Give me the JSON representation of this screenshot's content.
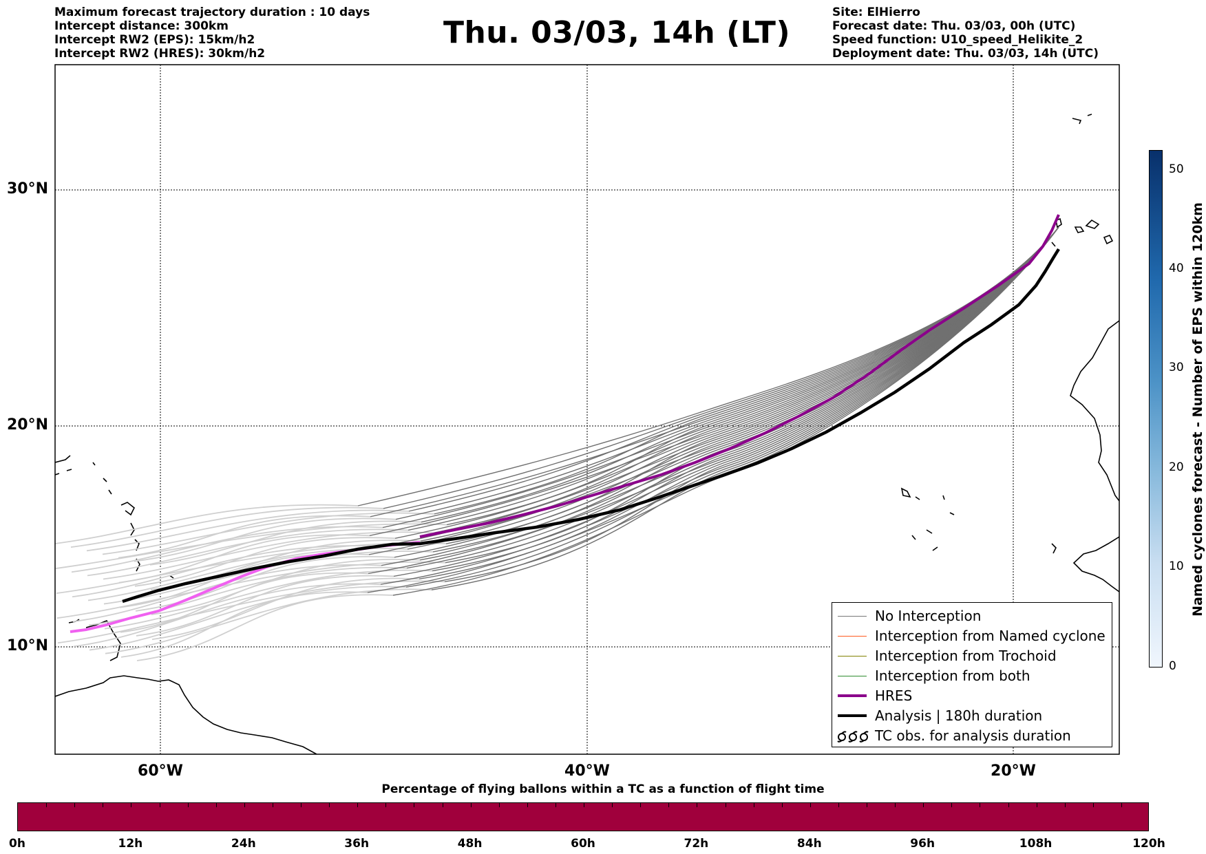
{
  "header": {
    "left_lines": [
      "Maximum forecast trajectory duration : 10 days",
      "Intercept distance: 300km",
      "Intercept RW2 (EPS):  15km/h2",
      "Intercept RW2 (HRES): 30km/h2"
    ],
    "title": "Thu. 03/03, 14h (LT)",
    "right_lines": [
      "Site: ElHierro",
      "Forecast date: Thu. 03/03, 00h (UTC)",
      "Speed function: U10_speed_Helikite_2",
      "Deployment date: Thu. 03/03, 14h (UTC)"
    ]
  },
  "map": {
    "lat_labels": [
      "30°N",
      "20°N",
      "10°N"
    ],
    "lon_labels": [
      "60°W",
      "40°W",
      "20°W"
    ]
  },
  "legend": {
    "items": [
      {
        "label": "No Interception",
        "color": "#777777"
      },
      {
        "label": "Interception from Named cyclone",
        "color": "#ff5a1f"
      },
      {
        "label": "Interception from Trochoid",
        "color": "#808000"
      },
      {
        "label": "Interception from both",
        "color": "#2e8b2e"
      },
      {
        "label": "HRES",
        "color": "#8b008b"
      },
      {
        "label": "Analysis | 180h duration",
        "color": "#000000"
      },
      {
        "label": "TC obs. for analysis duration",
        "icon": "cyclone-symbols-icon"
      }
    ]
  },
  "colorbar": {
    "label": "Named cyclones forecast - Number of EPS within 120km",
    "ticks": [
      "0",
      "10",
      "20",
      "30",
      "40",
      "50"
    ]
  },
  "percentage_bar": {
    "title": "Percentage of flying ballons within a TC as a function of flight time",
    "color": "#a0003c",
    "ticks": [
      "0h",
      "12h",
      "24h",
      "36h",
      "48h",
      "60h",
      "72h",
      "84h",
      "96h",
      "108h",
      "120h"
    ]
  }
}
